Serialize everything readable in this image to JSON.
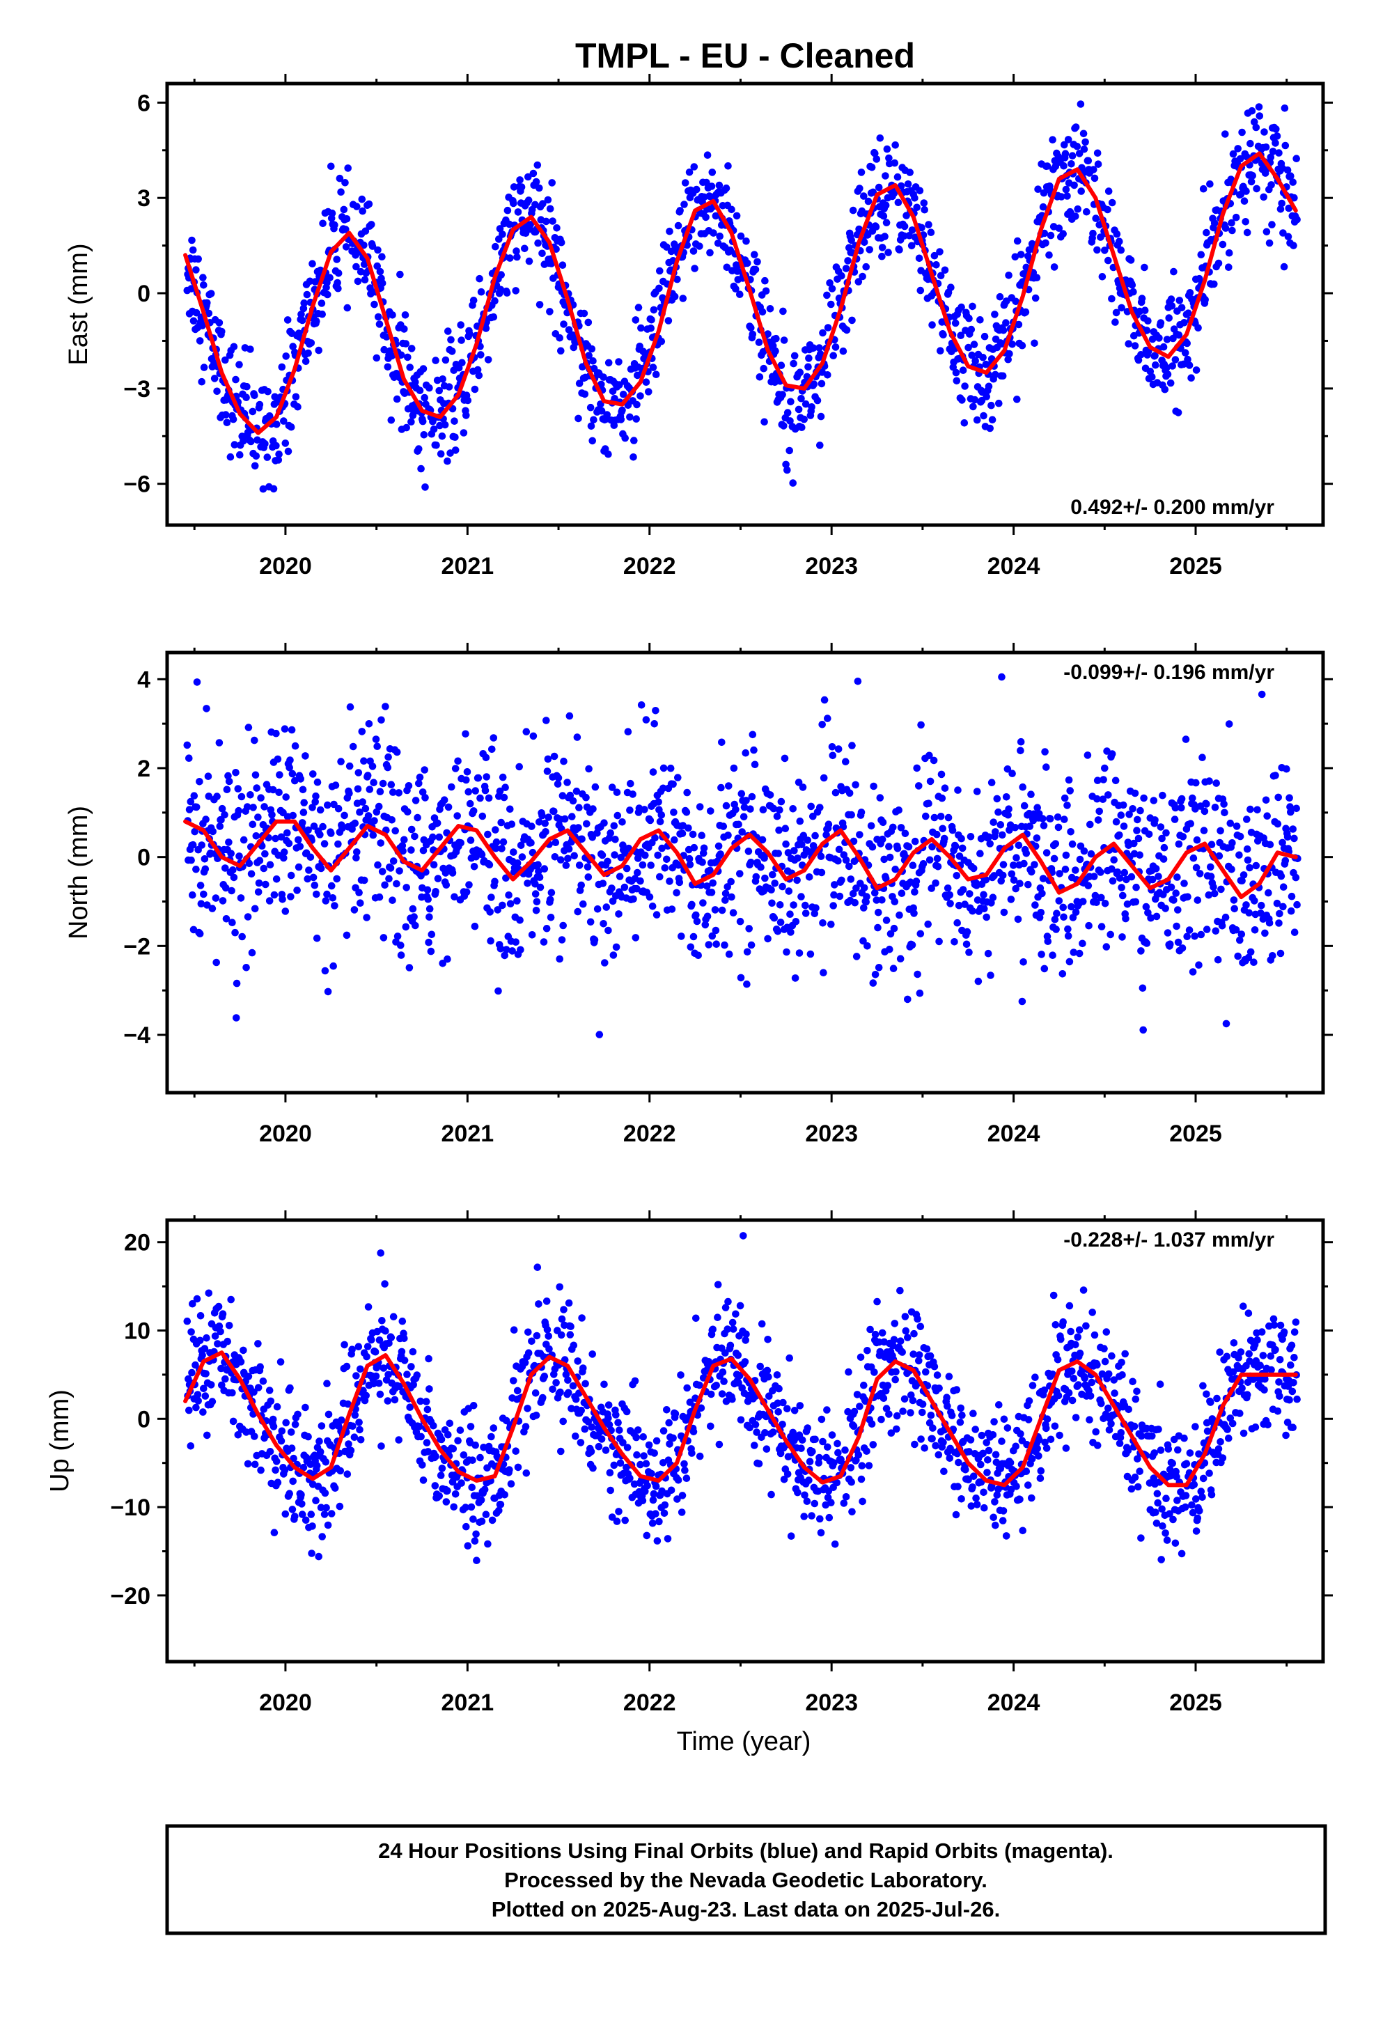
{
  "title": "TMPL  - EU - Cleaned",
  "xlabel": "Time (year)",
  "footer": {
    "line1": "24 Hour Positions Using Final Orbits (blue) and Rapid Orbits (magenta).",
    "line2": "Processed by the Nevada Geodetic Laboratory.",
    "line3": "Plotted on 2025-Aug-23. Last data on 2025-Jul-26."
  },
  "colors": {
    "points": "#0000ff",
    "fit": "#ff0000",
    "frame": "#000000"
  },
  "chart_data": [
    {
      "type": "scatter",
      "name": "east",
      "ylabel": "East (mm)",
      "rate_label": "0.492+/- 0.200 mm/yr",
      "rate_position": "bottom-right",
      "xlim": [
        2019.35,
        2025.7
      ],
      "ylim": [
        -7.3,
        6.6
      ],
      "yticks": [
        6,
        3,
        0,
        -3,
        -6
      ],
      "ytick_labels": [
        "6",
        "3",
        "0",
        "−3",
        "−6"
      ],
      "xticks": [
        2020,
        2021,
        2022,
        2023,
        2024,
        2025
      ],
      "xtick_labels": [
        "2020",
        "2021",
        "2022",
        "2023",
        "2024",
        "2025"
      ],
      "grid": false,
      "series": [
        {
          "kind": "fit-line",
          "x": [
            2019.45,
            2019.55,
            2019.65,
            2019.75,
            2019.85,
            2019.95,
            2020.05,
            2020.15,
            2020.25,
            2020.35,
            2020.45,
            2020.55,
            2020.65,
            2020.75,
            2020.85,
            2020.95,
            2021.05,
            2021.15,
            2021.25,
            2021.35,
            2021.45,
            2021.55,
            2021.65,
            2021.75,
            2021.85,
            2021.95,
            2022.05,
            2022.15,
            2022.25,
            2022.35,
            2022.45,
            2022.55,
            2022.65,
            2022.75,
            2022.85,
            2022.95,
            2023.05,
            2023.15,
            2023.25,
            2023.35,
            2023.45,
            2023.55,
            2023.65,
            2023.75,
            2023.85,
            2023.95,
            2024.05,
            2024.15,
            2024.25,
            2024.35,
            2024.45,
            2024.55,
            2024.65,
            2024.75,
            2024.85,
            2024.95,
            2025.05,
            2025.15,
            2025.25,
            2025.35,
            2025.45,
            2025.55
          ],
          "y": [
            1.2,
            -0.6,
            -2.5,
            -3.8,
            -4.4,
            -3.9,
            -2.4,
            -0.4,
            1.3,
            1.9,
            1.1,
            -0.8,
            -2.7,
            -3.7,
            -3.9,
            -3.2,
            -1.6,
            0.5,
            2.0,
            2.4,
            1.6,
            -0.2,
            -2.2,
            -3.4,
            -3.5,
            -2.8,
            -1.2,
            1.0,
            2.6,
            2.9,
            1.9,
            0.1,
            -1.8,
            -2.9,
            -3.0,
            -2.2,
            -0.5,
            1.6,
            3.1,
            3.4,
            2.4,
            0.6,
            -1.2,
            -2.3,
            -2.5,
            -1.8,
            -0.1,
            2.0,
            3.6,
            3.9,
            3.0,
            1.2,
            -0.6,
            -1.7,
            -2.0,
            -1.3,
            0.4,
            2.5,
            4.0,
            4.4,
            3.6,
            2.6
          ]
        },
        {
          "kind": "points",
          "count": 1900,
          "residual_scatter_mm": 0.9
        }
      ]
    },
    {
      "type": "scatter",
      "name": "north",
      "ylabel": "North (mm)",
      "rate_label": "-0.099+/- 0.196 mm/yr",
      "rate_position": "top-right",
      "xlim": [
        2019.35,
        2025.7
      ],
      "ylim": [
        -5.3,
        4.6
      ],
      "yticks": [
        4,
        2,
        0,
        -2,
        -4
      ],
      "ytick_labels": [
        "4",
        "2",
        "0",
        "−2",
        "−4"
      ],
      "xticks": [
        2020,
        2021,
        2022,
        2023,
        2024,
        2025
      ],
      "xtick_labels": [
        "2020",
        "2021",
        "2022",
        "2023",
        "2024",
        "2025"
      ],
      "grid": false,
      "series": [
        {
          "kind": "fit-line",
          "x": [
            2019.45,
            2019.55,
            2019.65,
            2019.75,
            2019.85,
            2019.95,
            2020.05,
            2020.15,
            2020.25,
            2020.35,
            2020.45,
            2020.55,
            2020.65,
            2020.75,
            2020.85,
            2020.95,
            2021.05,
            2021.15,
            2021.25,
            2021.35,
            2021.45,
            2021.55,
            2021.65,
            2021.75,
            2021.85,
            2021.95,
            2022.05,
            2022.15,
            2022.25,
            2022.35,
            2022.45,
            2022.55,
            2022.65,
            2022.75,
            2022.85,
            2022.95,
            2023.05,
            2023.15,
            2023.25,
            2023.35,
            2023.45,
            2023.55,
            2023.65,
            2023.75,
            2023.85,
            2023.95,
            2024.05,
            2024.15,
            2024.25,
            2024.35,
            2024.45,
            2024.55,
            2024.65,
            2024.75,
            2024.85,
            2024.95,
            2025.05,
            2025.15,
            2025.25,
            2025.35,
            2025.45,
            2025.55
          ],
          "y": [
            0.8,
            0.6,
            0.0,
            -0.2,
            0.3,
            0.8,
            0.8,
            0.2,
            -0.3,
            0.2,
            0.7,
            0.5,
            -0.1,
            -0.3,
            0.2,
            0.7,
            0.6,
            0.0,
            -0.5,
            -0.1,
            0.4,
            0.6,
            0.1,
            -0.4,
            -0.2,
            0.4,
            0.6,
            0.1,
            -0.6,
            -0.4,
            0.2,
            0.5,
            0.1,
            -0.5,
            -0.3,
            0.3,
            0.6,
            0.0,
            -0.7,
            -0.5,
            0.1,
            0.4,
            0.0,
            -0.5,
            -0.4,
            0.2,
            0.5,
            -0.1,
            -0.8,
            -0.6,
            0.0,
            0.3,
            -0.2,
            -0.7,
            -0.5,
            0.1,
            0.3,
            -0.3,
            -0.9,
            -0.6,
            0.1,
            0.0
          ]
        },
        {
          "kind": "points",
          "count": 1900,
          "residual_scatter_mm": 1.1
        }
      ]
    },
    {
      "type": "scatter",
      "name": "up",
      "ylabel": "Up (mm)",
      "rate_label": "-0.228+/- 1.037 mm/yr",
      "rate_position": "top-right",
      "xlim": [
        2019.35,
        2025.7
      ],
      "ylim": [
        -27.5,
        22.5
      ],
      "yticks": [
        20,
        10,
        0,
        -10,
        -20
      ],
      "ytick_labels": [
        "20",
        "10",
        "0",
        "−10",
        "−20"
      ],
      "xticks": [
        2020,
        2021,
        2022,
        2023,
        2024,
        2025
      ],
      "xtick_labels": [
        "2020",
        "2021",
        "2022",
        "2023",
        "2024",
        "2025"
      ],
      "grid": false,
      "series": [
        {
          "kind": "fit-line",
          "x": [
            2019.45,
            2019.55,
            2019.65,
            2019.75,
            2019.85,
            2019.95,
            2020.05,
            2020.15,
            2020.25,
            2020.35,
            2020.45,
            2020.55,
            2020.65,
            2020.75,
            2020.85,
            2020.95,
            2021.05,
            2021.15,
            2021.25,
            2021.35,
            2021.45,
            2021.55,
            2021.65,
            2021.75,
            2021.85,
            2021.95,
            2022.05,
            2022.15,
            2022.25,
            2022.35,
            2022.45,
            2022.55,
            2022.65,
            2022.75,
            2022.85,
            2022.95,
            2023.05,
            2023.15,
            2023.25,
            2023.35,
            2023.45,
            2023.55,
            2023.65,
            2023.75,
            2023.85,
            2023.95,
            2024.05,
            2024.15,
            2024.25,
            2024.35,
            2024.45,
            2024.55,
            2024.65,
            2024.75,
            2024.85,
            2024.95,
            2025.05,
            2025.15,
            2025.25,
            2025.35,
            2025.45,
            2025.55
          ],
          "y": [
            2.0,
            6.5,
            7.5,
            4.5,
            0.5,
            -3.0,
            -5.5,
            -6.8,
            -5.5,
            0.5,
            6.0,
            7.2,
            4.0,
            0.0,
            -3.5,
            -6.0,
            -7.0,
            -6.5,
            -1.0,
            5.0,
            7.0,
            6.0,
            2.5,
            -1.0,
            -4.0,
            -6.5,
            -7.0,
            -5.0,
            1.0,
            6.0,
            6.8,
            4.5,
            1.0,
            -2.5,
            -5.5,
            -7.2,
            -6.5,
            -2.0,
            4.5,
            6.5,
            5.5,
            2.0,
            -1.5,
            -5.0,
            -7.0,
            -7.5,
            -5.5,
            0.0,
            5.5,
            6.5,
            5.0,
            1.5,
            -2.0,
            -5.5,
            -7.5,
            -7.5,
            -4.0,
            1.5,
            5.0,
            5.0,
            5.0,
            5.0
          ]
        },
        {
          "kind": "points",
          "count": 1900,
          "residual_scatter_mm": 3.6
        }
      ]
    }
  ]
}
